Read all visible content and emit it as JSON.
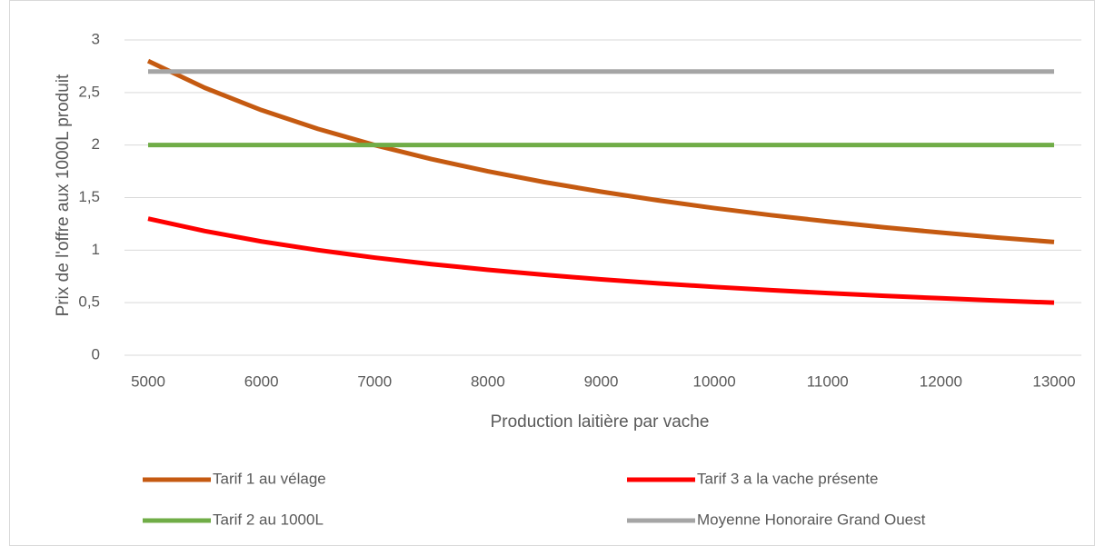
{
  "chart_data": {
    "type": "line",
    "x_label": "Production laitière par vache",
    "y_label": "Prix de l'offre aux 1000L produit",
    "x": [
      5000,
      5500,
      6000,
      6500,
      7000,
      7500,
      8000,
      8500,
      9000,
      9500,
      10000,
      10500,
      11000,
      11500,
      12000,
      12500,
      13000
    ],
    "series": [
      {
        "name": "Tarif 1 au vélage",
        "color": "#c55a11",
        "values": [
          2.8,
          2.545,
          2.333,
          2.154,
          2.0,
          1.867,
          1.75,
          1.647,
          1.556,
          1.474,
          1.4,
          1.333,
          1.273,
          1.217,
          1.167,
          1.12,
          1.077
        ]
      },
      {
        "name": "Tarif 3 a la vache présente",
        "color": "#ff0000",
        "values": [
          1.3,
          1.182,
          1.083,
          1.0,
          0.929,
          0.867,
          0.813,
          0.765,
          0.722,
          0.684,
          0.65,
          0.619,
          0.591,
          0.565,
          0.542,
          0.52,
          0.5
        ]
      },
      {
        "name": "Tarif 2 au 1000L",
        "color": "#70ad47",
        "values": [
          2,
          2,
          2,
          2,
          2,
          2,
          2,
          2,
          2,
          2,
          2,
          2,
          2,
          2,
          2,
          2,
          2
        ]
      },
      {
        "name": "Moyenne Honoraire Grand Ouest",
        "color": "#a5a5a5",
        "values": [
          2.7,
          2.7,
          2.7,
          2.7,
          2.7,
          2.7,
          2.7,
          2.7,
          2.7,
          2.7,
          2.7,
          2.7,
          2.7,
          2.7,
          2.7,
          2.7,
          2.7
        ]
      }
    ],
    "xlim": [
      5000,
      13000
    ],
    "xticks": [
      5000,
      6000,
      7000,
      8000,
      9000,
      10000,
      11000,
      12000,
      13000
    ],
    "ylim": [
      0,
      3
    ],
    "yticks": [
      0,
      {
        "value": 0.5,
        "label": "0,5"
      },
      1,
      {
        "value": 1.5,
        "label": "1,5"
      },
      2,
      {
        "value": 2.5,
        "label": "2,5"
      },
      3
    ],
    "grid": true,
    "legend": "bottom"
  }
}
